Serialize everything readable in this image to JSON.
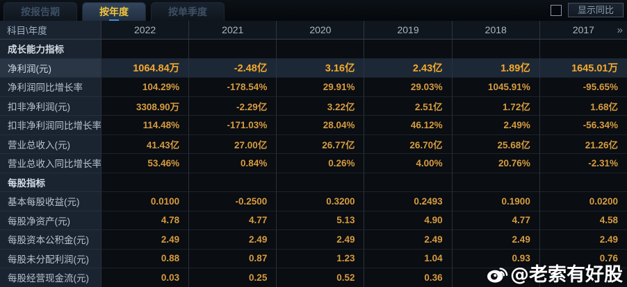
{
  "tabbar": {
    "tabs": [
      {
        "label": "按报告期",
        "active": false
      },
      {
        "label": "按年度",
        "active": true
      },
      {
        "label": "按单季度",
        "active": false
      }
    ],
    "show_yoy": {
      "checked": false,
      "label": "显示同比"
    }
  },
  "table": {
    "corner_header": "科目\\年度",
    "year_headers": [
      "2022",
      "2021",
      "2020",
      "2019",
      "2018",
      "2017"
    ],
    "more_columns_icon": "»",
    "rows": [
      {
        "type": "section",
        "label": "成长能力指标",
        "values": [
          "",
          "",
          "",
          "",
          "",
          ""
        ]
      },
      {
        "type": "data",
        "highlight": true,
        "label": "净利润(元)",
        "values": [
          "1064.84万",
          "-2.48亿",
          "3.16亿",
          "2.43亿",
          "1.89亿",
          "1645.01万"
        ]
      },
      {
        "type": "data",
        "highlight": false,
        "label": "净利润同比增长率",
        "values": [
          "104.29%",
          "-178.54%",
          "29.91%",
          "29.03%",
          "1045.91%",
          "-95.65%"
        ]
      },
      {
        "type": "data",
        "highlight": false,
        "label": "扣非净利润(元)",
        "values": [
          "3308.90万",
          "-2.29亿",
          "3.22亿",
          "2.51亿",
          "1.72亿",
          "1.68亿"
        ]
      },
      {
        "type": "data",
        "highlight": false,
        "label": "扣非净利润同比增长率",
        "values": [
          "114.48%",
          "-171.03%",
          "28.04%",
          "46.12%",
          "2.49%",
          "-56.34%"
        ]
      },
      {
        "type": "data",
        "highlight": false,
        "label": "营业总收入(元)",
        "values": [
          "41.43亿",
          "27.00亿",
          "26.77亿",
          "26.70亿",
          "25.68亿",
          "21.26亿"
        ]
      },
      {
        "type": "data",
        "highlight": false,
        "label": "营业总收入同比增长率",
        "values": [
          "53.46%",
          "0.84%",
          "0.26%",
          "4.00%",
          "20.76%",
          "-2.31%"
        ]
      },
      {
        "type": "section",
        "label": "每股指标",
        "values": [
          "",
          "",
          "",
          "",
          "",
          ""
        ]
      },
      {
        "type": "data",
        "highlight": false,
        "label": "基本每股收益(元)",
        "values": [
          "0.0100",
          "-0.2500",
          "0.3200",
          "0.2493",
          "0.1900",
          "0.0200"
        ]
      },
      {
        "type": "data",
        "highlight": false,
        "label": "每股净资产(元)",
        "values": [
          "4.78",
          "4.77",
          "5.13",
          "4.90",
          "4.77",
          "4.58"
        ]
      },
      {
        "type": "data",
        "highlight": false,
        "label": "每股资本公积金(元)",
        "values": [
          "2.49",
          "2.49",
          "2.49",
          "2.49",
          "2.49",
          "2.49"
        ]
      },
      {
        "type": "data",
        "highlight": false,
        "label": "每股未分配利润(元)",
        "values": [
          "0.88",
          "0.87",
          "1.23",
          "1.04",
          "0.93",
          "0.76"
        ]
      },
      {
        "type": "data",
        "highlight": false,
        "label": "每股经营现金流(元)",
        "values": [
          "0.03",
          "0.25",
          "0.52",
          "0.36",
          "",
          ""
        ]
      }
    ]
  },
  "watermark": {
    "icon": "weibo-icon",
    "text": "@老索有好股"
  },
  "colors": {
    "value_orange": "#d69c40",
    "highlight_gold": "#f4a92c",
    "active_tab_text": "#f2c53d",
    "label_bg": "#1a2430",
    "value_bg": "#0a0d11",
    "highlight_row_bg": "#1d2836"
  }
}
